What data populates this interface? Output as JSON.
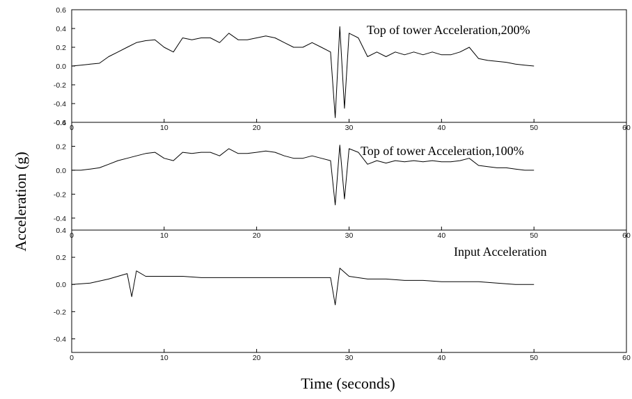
{
  "chart_data": {
    "type": "line",
    "ylabel": "Acceleration (g)",
    "xlabel": "Time (seconds)",
    "panels": [
      {
        "title": "Top of tower Acceleration,200%",
        "series_name": "",
        "xlim": [
          0,
          60
        ],
        "ylim": [
          -0.6,
          0.6
        ],
        "x_ticks": [
          "0",
          "10",
          "20",
          "30",
          "40",
          "50",
          "60"
        ],
        "y_ticks": [
          "0.6",
          "0.4",
          "0.2",
          "0.0",
          "-0.2",
          "-0.4",
          "-0.6"
        ],
        "x_tick_values": [
          0,
          10,
          20,
          30,
          40,
          50,
          60
        ],
        "y_tick_values": [
          0.6,
          0.4,
          0.2,
          0.0,
          -0.2,
          -0.4,
          -0.6
        ],
        "x": [
          0,
          1,
          2,
          3,
          4,
          5,
          6,
          7,
          8,
          9,
          10,
          11,
          12,
          13,
          14,
          15,
          16,
          17,
          18,
          19,
          20,
          21,
          22,
          23,
          24,
          25,
          26,
          27,
          28,
          28.5,
          29,
          29.5,
          30,
          31,
          32,
          33,
          34,
          35,
          36,
          37,
          38,
          39,
          40,
          41,
          42,
          43,
          44,
          45,
          46,
          47,
          48,
          49,
          50
        ],
        "y": [
          0.0,
          0.01,
          0.02,
          0.03,
          0.1,
          0.15,
          0.2,
          0.25,
          0.27,
          0.28,
          0.2,
          0.15,
          0.3,
          0.28,
          0.3,
          0.3,
          0.25,
          0.35,
          0.28,
          0.28,
          0.3,
          0.32,
          0.3,
          0.25,
          0.2,
          0.2,
          0.25,
          0.2,
          0.15,
          -0.55,
          0.42,
          -0.45,
          0.35,
          0.3,
          0.1,
          0.15,
          0.1,
          0.15,
          0.12,
          0.15,
          0.12,
          0.15,
          0.12,
          0.12,
          0.15,
          0.2,
          0.08,
          0.06,
          0.05,
          0.04,
          0.02,
          0.01,
          0.0
        ]
      },
      {
        "title": "Top of tower Acceleration,100%",
        "series_name": "",
        "xlim": [
          0,
          60
        ],
        "ylim": [
          -0.5,
          0.4
        ],
        "x_ticks": [
          "0",
          "10",
          "20",
          "30",
          "40",
          "50",
          "60"
        ],
        "y_ticks": [
          "0.4",
          "0.2",
          "0.0",
          "-0.2",
          "-0.4"
        ],
        "x_tick_values": [
          0,
          10,
          20,
          30,
          40,
          50,
          60
        ],
        "y_tick_values": [
          0.4,
          0.2,
          0.0,
          -0.2,
          -0.4
        ],
        "x": [
          0,
          1,
          2,
          3,
          4,
          5,
          6,
          7,
          8,
          9,
          10,
          11,
          12,
          13,
          14,
          15,
          16,
          17,
          18,
          19,
          20,
          21,
          22,
          23,
          24,
          25,
          26,
          27,
          28,
          28.5,
          29,
          29.5,
          30,
          31,
          32,
          33,
          34,
          35,
          36,
          37,
          38,
          39,
          40,
          41,
          42,
          43,
          44,
          45,
          46,
          47,
          48,
          49,
          50
        ],
        "y": [
          0.0,
          0.0,
          0.01,
          0.02,
          0.05,
          0.08,
          0.1,
          0.12,
          0.14,
          0.15,
          0.1,
          0.08,
          0.15,
          0.14,
          0.15,
          0.15,
          0.12,
          0.18,
          0.14,
          0.14,
          0.15,
          0.16,
          0.15,
          0.12,
          0.1,
          0.1,
          0.12,
          0.1,
          0.08,
          -0.29,
          0.21,
          -0.24,
          0.18,
          0.15,
          0.05,
          0.08,
          0.06,
          0.08,
          0.07,
          0.08,
          0.07,
          0.08,
          0.07,
          0.07,
          0.08,
          0.1,
          0.04,
          0.03,
          0.02,
          0.02,
          0.01,
          0.0,
          0.0
        ]
      },
      {
        "title": "Input Acceleration",
        "series_name": "",
        "xlim": [
          0,
          60
        ],
        "ylim": [
          -0.5,
          0.4
        ],
        "x_ticks": [
          "0",
          "10",
          "20",
          "30",
          "40",
          "50",
          "60"
        ],
        "y_ticks": [
          "0.4",
          "0.2",
          "0.0",
          "-0.2",
          "-0.4"
        ],
        "x_tick_values": [
          0,
          10,
          20,
          30,
          40,
          50,
          60
        ],
        "y_tick_values": [
          0.4,
          0.2,
          0.0,
          -0.2,
          -0.4
        ],
        "x": [
          0,
          2,
          4,
          6,
          6.5,
          7,
          8,
          10,
          12,
          14,
          16,
          18,
          20,
          22,
          24,
          26,
          28,
          28.5,
          29,
          30,
          32,
          34,
          36,
          38,
          40,
          42,
          44,
          46,
          48,
          50
        ],
        "y": [
          0.0,
          0.01,
          0.04,
          0.08,
          -0.09,
          0.1,
          0.06,
          0.06,
          0.06,
          0.05,
          0.05,
          0.05,
          0.05,
          0.05,
          0.05,
          0.05,
          0.05,
          -0.15,
          0.12,
          0.06,
          0.04,
          0.04,
          0.03,
          0.03,
          0.02,
          0.02,
          0.02,
          0.01,
          0.0,
          0.0
        ]
      }
    ]
  }
}
